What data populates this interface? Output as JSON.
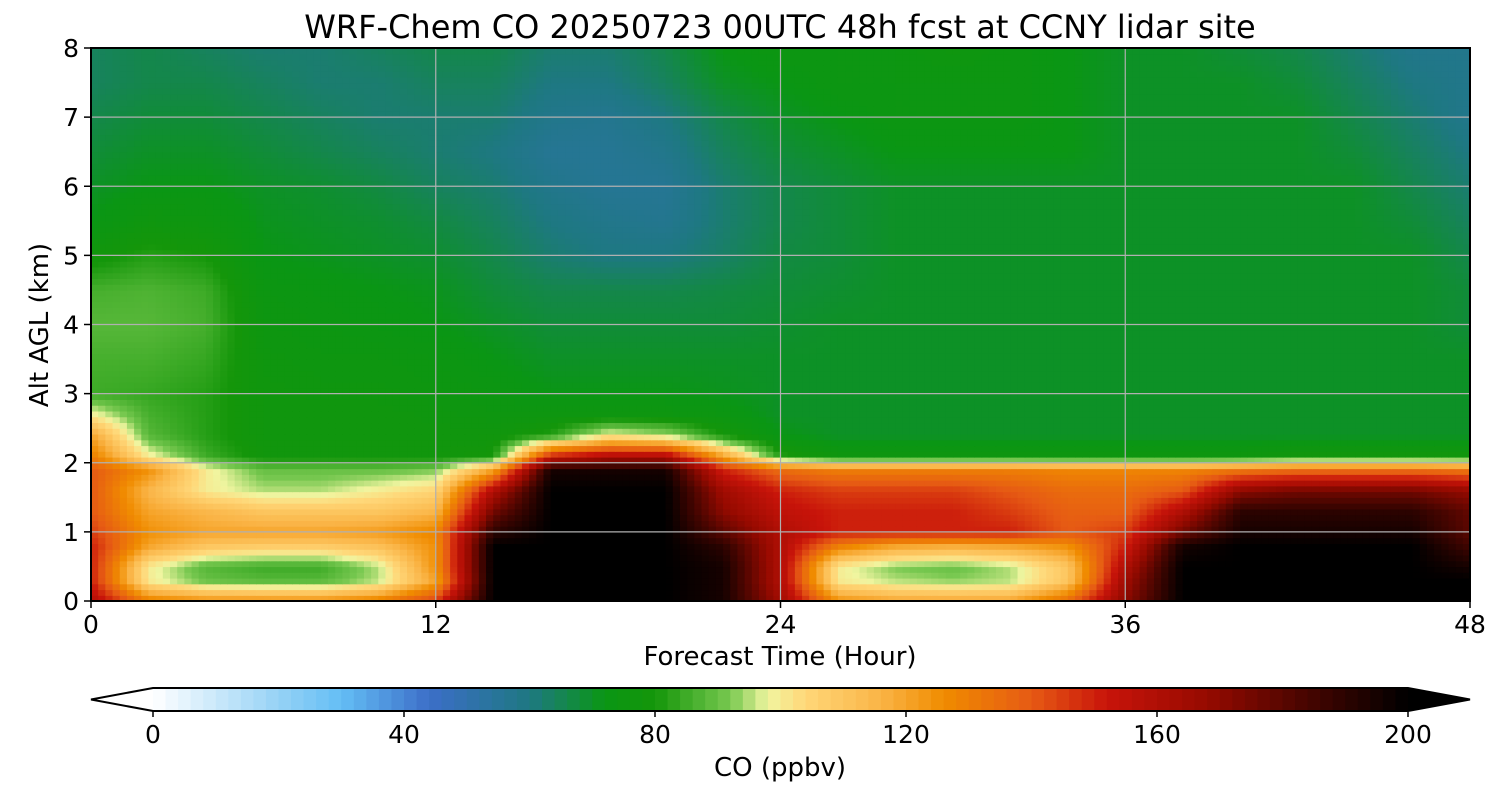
{
  "chart_data": {
    "type": "heatmap",
    "title": "WRF-Chem CO  20250723 00UTC 48h fcst at CCNY lidar site",
    "xlabel": "Forecast Time (Hour)",
    "ylabel": "Alt AGL (km)",
    "xlim": [
      0,
      48
    ],
    "ylim": [
      0,
      8
    ],
    "x_ticks": [
      0,
      12,
      24,
      36,
      48
    ],
    "y_ticks": [
      0,
      1,
      2,
      3,
      4,
      5,
      6,
      7,
      8
    ],
    "grid": true,
    "colorbar": {
      "label": "CO  (ppbv)",
      "range": [
        0,
        200
      ],
      "ticks": [
        0,
        40,
        80,
        120,
        160,
        200
      ],
      "extend": "both"
    },
    "x": [
      0,
      2,
      4,
      6,
      8,
      10,
      12,
      14,
      16,
      18,
      20,
      22,
      24,
      26,
      28,
      30,
      32,
      34,
      36,
      38,
      40,
      42,
      44,
      46,
      48
    ],
    "y": [
      0,
      0.3,
      0.5,
      0.8,
      1.0,
      1.3,
      1.6,
      1.9,
      2.1,
      2.4,
      2.7,
      3.0,
      3.5,
      4.0,
      4.5,
      5.0,
      5.5,
      6.0,
      6.5,
      7.0,
      7.5,
      8.0
    ],
    "z": [
      [
        160,
        130,
        125,
        125,
        125,
        130,
        145,
        200,
        200,
        200,
        200,
        195,
        165,
        125,
        120,
        120,
        120,
        135,
        170,
        200,
        200,
        200,
        200,
        200,
        200
      ],
      [
        150,
        100,
        90,
        88,
        88,
        95,
        120,
        200,
        200,
        200,
        200,
        195,
        160,
        100,
        95,
        93,
        95,
        110,
        165,
        200,
        200,
        200,
        200,
        200,
        200
      ],
      [
        150,
        100,
        88,
        85,
        85,
        95,
        125,
        200,
        200,
        200,
        200,
        195,
        160,
        100,
        92,
        90,
        95,
        110,
        160,
        200,
        200,
        200,
        200,
        200,
        195
      ],
      [
        150,
        120,
        110,
        108,
        108,
        112,
        125,
        200,
        200,
        200,
        200,
        190,
        160,
        130,
        120,
        118,
        120,
        125,
        150,
        195,
        200,
        200,
        200,
        200,
        185
      ],
      [
        145,
        125,
        120,
        120,
        120,
        122,
        128,
        190,
        200,
        200,
        200,
        180,
        160,
        150,
        150,
        150,
        150,
        140,
        145,
        175,
        195,
        195,
        195,
        195,
        180
      ],
      [
        140,
        120,
        115,
        110,
        110,
        110,
        115,
        175,
        200,
        200,
        200,
        170,
        155,
        150,
        150,
        150,
        145,
        138,
        138,
        160,
        190,
        190,
        190,
        190,
        178
      ],
      [
        140,
        115,
        100,
        95,
        95,
        100,
        105,
        160,
        200,
        200,
        200,
        165,
        150,
        145,
        145,
        145,
        140,
        135,
        135,
        140,
        170,
        175,
        175,
        175,
        168
      ],
      [
        140,
        125,
        100,
        90,
        90,
        90,
        92,
        120,
        195,
        195,
        195,
        150,
        135,
        130,
        130,
        130,
        130,
        128,
        128,
        128,
        132,
        135,
        135,
        135,
        132
      ],
      [
        130,
        100,
        85,
        78,
        78,
        78,
        78,
        80,
        150,
        160,
        160,
        120,
        82,
        76,
        76,
        76,
        76,
        76,
        76,
        76,
        76,
        78,
        78,
        78,
        78
      ],
      [
        120,
        88,
        82,
        77,
        77,
        77,
        77,
        77,
        82,
        100,
        95,
        80,
        72,
        70,
        70,
        70,
        70,
        70,
        70,
        70,
        70,
        70,
        70,
        70,
        70
      ],
      [
        100,
        86,
        82,
        77,
        77,
        77,
        76,
        75,
        75,
        75,
        75,
        74,
        70,
        70,
        70,
        70,
        70,
        70,
        70,
        70,
        70,
        70,
        70,
        70,
        70
      ],
      [
        85,
        84,
        82,
        77,
        76,
        76,
        75,
        74,
        72,
        72,
        72,
        71,
        70,
        70,
        70,
        70,
        70,
        70,
        70,
        70,
        70,
        70,
        70,
        70,
        70
      ],
      [
        86,
        86,
        84,
        76,
        75,
        75,
        74,
        72,
        70,
        70,
        70,
        70,
        70,
        70,
        70,
        70,
        70,
        70,
        70,
        70,
        70,
        70,
        70,
        70,
        70
      ],
      [
        88,
        88,
        86,
        75,
        74,
        73,
        72,
        70,
        68,
        68,
        68,
        68,
        69,
        70,
        70,
        70,
        70,
        70,
        70,
        70,
        70,
        70,
        70,
        70,
        68
      ],
      [
        86,
        87,
        85,
        74,
        73,
        72,
        71,
        68,
        66,
        66,
        66,
        67,
        68,
        69,
        70,
        70,
        70,
        70,
        70,
        70,
        70,
        70,
        70,
        70,
        68
      ],
      [
        78,
        82,
        80,
        72,
        71,
        70,
        69,
        66,
        62,
        60,
        60,
        63,
        67,
        68,
        70,
        70,
        70,
        70,
        70,
        70,
        70,
        70,
        70,
        70,
        66
      ],
      [
        72,
        76,
        75,
        71,
        70,
        69,
        67,
        64,
        60,
        58,
        57,
        62,
        66,
        68,
        70,
        70,
        70,
        70,
        70,
        70,
        70,
        70,
        70,
        68,
        64
      ],
      [
        70,
        72,
        72,
        70,
        69,
        67,
        64,
        62,
        58,
        56,
        56,
        62,
        66,
        68,
        70,
        70,
        70,
        70,
        70,
        70,
        70,
        70,
        70,
        66,
        62
      ],
      [
        68,
        70,
        70,
        68,
        66,
        64,
        62,
        60,
        56,
        56,
        58,
        64,
        68,
        70,
        72,
        72,
        72,
        72,
        70,
        70,
        70,
        70,
        68,
        64,
        60
      ],
      [
        66,
        68,
        68,
        66,
        64,
        62,
        62,
        62,
        58,
        57,
        60,
        66,
        70,
        72,
        74,
        74,
        74,
        72,
        70,
        70,
        70,
        70,
        66,
        62,
        58
      ],
      [
        64,
        66,
        66,
        64,
        62,
        62,
        64,
        64,
        60,
        60,
        64,
        70,
        72,
        74,
        74,
        74,
        74,
        72,
        70,
        70,
        70,
        68,
        64,
        60,
        58
      ],
      [
        64,
        66,
        64,
        62,
        62,
        64,
        66,
        66,
        62,
        62,
        66,
        72,
        74,
        74,
        74,
        76,
        74,
        72,
        70,
        70,
        68,
        66,
        62,
        58,
        58
      ]
    ]
  }
}
